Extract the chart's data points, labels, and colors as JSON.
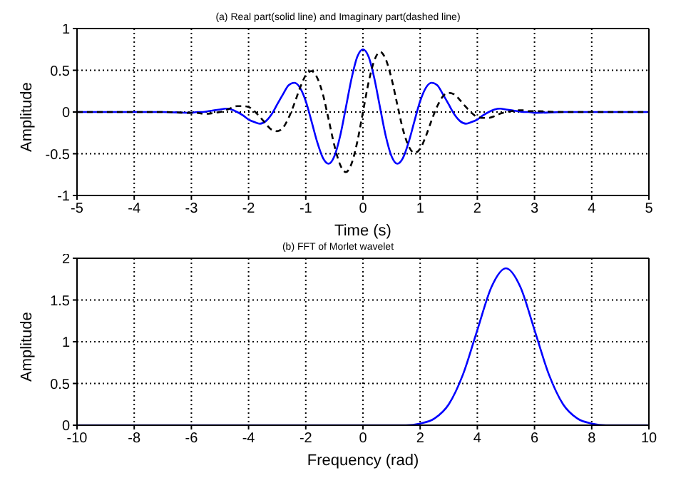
{
  "chart_data": [
    {
      "type": "line",
      "title": "(a) Real part(solid line) and Imaginary part(dashed line)",
      "xlabel": "Time (s)",
      "ylabel": "Amplitude",
      "xlim": [
        -5,
        5
      ],
      "ylim": [
        -1,
        1
      ],
      "xticks": [
        -5,
        -4,
        -3,
        -2,
        -1,
        0,
        1,
        2,
        3,
        4,
        5
      ],
      "yticks": [
        -1,
        -0.5,
        0,
        0.5,
        1
      ],
      "grid": true,
      "series": [
        {
          "color": "#0000ff",
          "line_style": "solid",
          "x": [
            -5,
            -3.5,
            -3,
            -2.9,
            -2.8,
            -2.7,
            -2.6,
            -2.5,
            -2.4,
            -2.3,
            -2.2,
            -2.1,
            -2,
            -1.9,
            -1.8,
            -1.7,
            -1.6,
            -1.5,
            -1.4,
            -1.3,
            -1.2,
            -1.1,
            -1,
            -0.9,
            -0.8,
            -0.7,
            -0.6,
            -0.5,
            -0.4,
            -0.3,
            -0.2,
            -0.1,
            0,
            0.1,
            0.2,
            0.3,
            0.4,
            0.5,
            0.6,
            0.7,
            0.8,
            0.9,
            1,
            1.1,
            1.2,
            1.3,
            1.4,
            1.5,
            1.6,
            1.7,
            1.8,
            1.9,
            2,
            2.1,
            2.2,
            2.3,
            2.4,
            2.5,
            2.6,
            2.7,
            2.8,
            2.9,
            3,
            3.5,
            5
          ],
          "values": [
            0,
            0,
            -0.01,
            0,
            0,
            0.01,
            0.02,
            0.03,
            0.04,
            0.03,
            0,
            -0.04,
            -0.09,
            -0.12,
            -0.14,
            -0.11,
            -0.03,
            0.09,
            0.21,
            0.32,
            0.35,
            0.29,
            0.13,
            -0.11,
            -0.36,
            -0.55,
            -0.62,
            -0.53,
            -0.29,
            0.05,
            0.4,
            0.66,
            0.75,
            0.66,
            0.4,
            0.05,
            -0.29,
            -0.53,
            -0.62,
            -0.55,
            -0.36,
            -0.11,
            0.13,
            0.29,
            0.35,
            0.32,
            0.21,
            0.09,
            -0.03,
            -0.11,
            -0.14,
            -0.12,
            -0.09,
            -0.04,
            0,
            0.03,
            0.04,
            0.03,
            0.02,
            0.01,
            0,
            0,
            -0.01,
            0,
            0
          ]
        },
        {
          "color": "#000000",
          "line_style": "dashed",
          "x": [
            -5,
            -3.5,
            -3,
            -2.9,
            -2.8,
            -2.7,
            -2.6,
            -2.5,
            -2.4,
            -2.3,
            -2.2,
            -2.1,
            -2,
            -1.9,
            -1.8,
            -1.7,
            -1.6,
            -1.5,
            -1.4,
            -1.3,
            -1.2,
            -1.1,
            -1,
            -0.9,
            -0.8,
            -0.7,
            -0.6,
            -0.5,
            -0.4,
            -0.3,
            -0.2,
            -0.1,
            0,
            0.1,
            0.2,
            0.3,
            0.4,
            0.5,
            0.6,
            0.7,
            0.8,
            0.9,
            1,
            1.1,
            1.2,
            1.3,
            1.4,
            1.5,
            1.6,
            1.7,
            1.8,
            1.9,
            2,
            2.1,
            2.2,
            2.3,
            2.4,
            2.5,
            2.6,
            2.7,
            2.8,
            2.9,
            3,
            3.5,
            5
          ],
          "values": [
            0,
            0,
            -0.01,
            -0.01,
            -0.02,
            -0.02,
            -0.01,
            0,
            0.02,
            0.05,
            0.07,
            0.07,
            0.06,
            0.01,
            -0.06,
            -0.14,
            -0.21,
            -0.23,
            -0.19,
            -0.07,
            0.1,
            0.29,
            0.44,
            0.49,
            0.41,
            0.21,
            -0.09,
            -0.4,
            -0.63,
            -0.72,
            -0.62,
            -0.36,
            0,
            0.36,
            0.62,
            0.72,
            0.63,
            0.4,
            0.09,
            -0.21,
            -0.41,
            -0.49,
            -0.44,
            -0.29,
            -0.1,
            0.07,
            0.19,
            0.23,
            0.21,
            0.14,
            0.06,
            -0.01,
            -0.06,
            -0.07,
            -0.07,
            -0.05,
            -0.02,
            0,
            0.01,
            0.02,
            0.02,
            0.01,
            0.01,
            0,
            0
          ]
        }
      ]
    },
    {
      "type": "line",
      "title": "(b) FFT of Morlet wavelet",
      "xlabel": "Frequency (rad)",
      "ylabel": "Amplitude",
      "xlim": [
        -10,
        10
      ],
      "ylim": [
        0,
        2
      ],
      "xticks": [
        -10,
        -8,
        -6,
        -4,
        -2,
        0,
        2,
        4,
        6,
        8,
        10
      ],
      "yticks": [
        0,
        0.5,
        1,
        1.5,
        2
      ],
      "grid": true,
      "series": [
        {
          "color": "#0000ff",
          "line_style": "solid",
          "x": [
            -10,
            0,
            1.5,
            2,
            2.5,
            3,
            3.5,
            4,
            4.5,
            5,
            5.5,
            6,
            6.5,
            7,
            7.5,
            8,
            8.5,
            10
          ],
          "values": [
            0,
            0,
            0,
            0.02,
            0.08,
            0.25,
            0.61,
            1.14,
            1.66,
            1.88,
            1.66,
            1.14,
            0.61,
            0.25,
            0.08,
            0.02,
            0,
            0
          ]
        }
      ]
    }
  ]
}
